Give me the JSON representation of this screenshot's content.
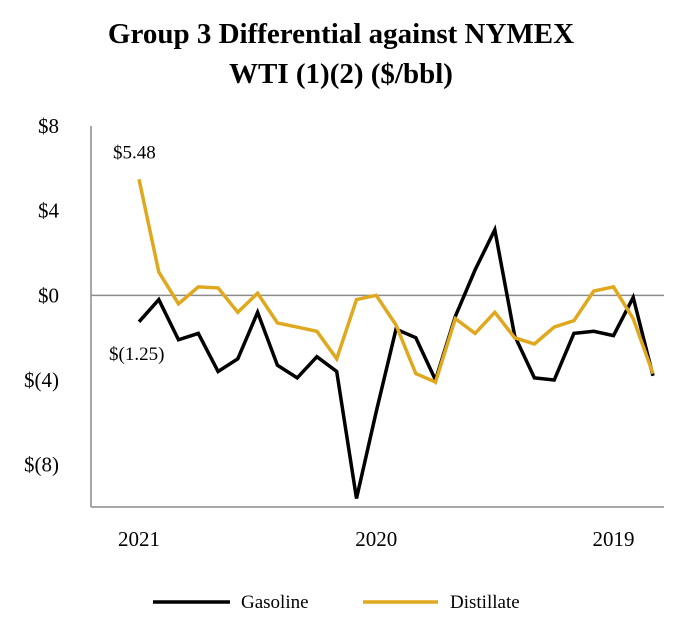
{
  "chart_data": {
    "type": "line",
    "title_line1": "Group 3 Differential against NYMEX",
    "title_line2": "WTI (1)(2) ($/bbl)",
    "xlabel": "",
    "ylabel": "",
    "ylim": [
      -10,
      8
    ],
    "y_ticks": [
      {
        "value": 8,
        "label": "$8"
      },
      {
        "value": 4,
        "label": "$4"
      },
      {
        "value": 0,
        "label": "$0"
      },
      {
        "value": -4,
        "label": "$(4)"
      },
      {
        "value": -8,
        "label": "$(8)"
      }
    ],
    "x_tick_labels": [
      {
        "index": 0,
        "label": "2021"
      },
      {
        "index": 12,
        "label": "2020"
      },
      {
        "index": 24,
        "label": "2019"
      }
    ],
    "series": [
      {
        "name": "Gasoline",
        "color": "#000000",
        "values": [
          -1.25,
          -0.2,
          -2.1,
          -1.8,
          -3.6,
          -3.0,
          -0.8,
          -3.3,
          -3.9,
          -2.9,
          -3.6,
          -9.6,
          -5.5,
          -1.6,
          -2.0,
          -4.0,
          -1.0,
          1.2,
          3.1,
          -1.9,
          -3.9,
          -4.0,
          -1.8,
          -1.7,
          -1.9,
          -0.1,
          -3.8
        ]
      },
      {
        "name": "Distillate",
        "color": "#E0A81E",
        "values": [
          5.48,
          1.1,
          -0.4,
          0.4,
          0.35,
          -0.8,
          0.1,
          -1.3,
          -1.5,
          -1.7,
          -3.0,
          -0.2,
          0.0,
          -1.4,
          -3.7,
          -4.1,
          -1.1,
          -1.8,
          -0.8,
          -2.0,
          -2.3,
          -1.5,
          -1.2,
          0.2,
          0.4,
          -1.1,
          -3.7
        ]
      }
    ],
    "annotations": [
      {
        "label": "$5.48",
        "series": "Distillate",
        "index": 0
      },
      {
        "label": "$(1.25)",
        "series": "Gasoline",
        "index": 0
      }
    ],
    "legend_position": "bottom"
  }
}
